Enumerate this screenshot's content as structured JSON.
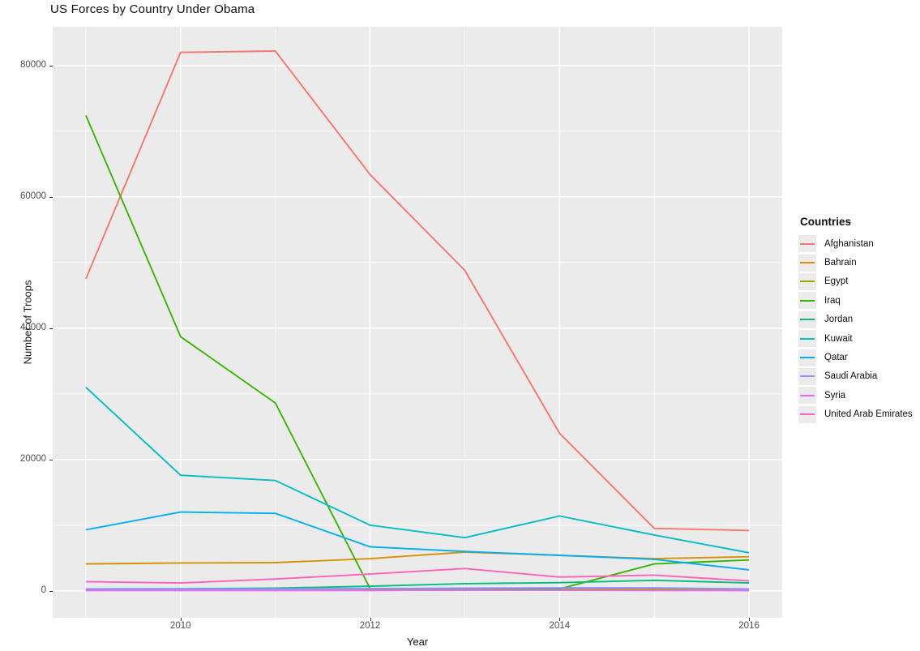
{
  "chart_data": {
    "type": "line",
    "title": "US Forces by Country Under Obama",
    "xlabel": "Year",
    "ylabel": "Number of Troops",
    "legend_title": "Countries",
    "legend_position": "right",
    "grid": true,
    "panel_bg": "#EBEBEB",
    "grid_color": "#FFFFFF",
    "x": [
      2009,
      2010,
      2011,
      2012,
      2013,
      2014,
      2015,
      2016
    ],
    "xlim": [
      2008.65,
      2016.35
    ],
    "ylim": [
      -4100,
      85900
    ],
    "x_major_ticks": [
      2010,
      2012,
      2014,
      2016
    ],
    "x_minor_ticks": [
      2009,
      2011,
      2013,
      2015
    ],
    "y_major_ticks": [
      0,
      20000,
      40000,
      60000,
      80000
    ],
    "y_minor_ticks": [
      10000,
      30000,
      50000,
      70000
    ],
    "series": [
      {
        "name": "Afghanistan",
        "color": "#F8766D",
        "values": [
          47500,
          82000,
          82200,
          63400,
          48800,
          24000,
          9500,
          9200
        ]
      },
      {
        "name": "Bahrain",
        "color": "#D89000",
        "values": [
          4100,
          4250,
          4300,
          4900,
          5900,
          5400,
          4900,
          5200
        ]
      },
      {
        "name": "Egypt",
        "color": "#A3A500",
        "values": [
          300,
          300,
          300,
          280,
          260,
          250,
          260,
          290
        ]
      },
      {
        "name": "Iraq",
        "color": "#39B600",
        "values": [
          72400,
          38700,
          28600,
          350,
          300,
          300,
          4100,
          4700
        ]
      },
      {
        "name": "Jordan",
        "color": "#00BF7D",
        "values": [
          300,
          320,
          400,
          700,
          1100,
          1250,
          1600,
          1200
        ]
      },
      {
        "name": "Kuwait",
        "color": "#00BFC4",
        "values": [
          31000,
          17600,
          16800,
          10000,
          8100,
          11400,
          8500,
          5800
        ]
      },
      {
        "name": "Qatar",
        "color": "#00B0F6",
        "values": [
          9300,
          12000,
          11800,
          6700,
          6000,
          5400,
          4800,
          3200
        ]
      },
      {
        "name": "Saudi Arabia",
        "color": "#9590FF",
        "values": [
          300,
          300,
          300,
          350,
          400,
          450,
          450,
          300
        ]
      },
      {
        "name": "Syria",
        "color": "#E76BF3",
        "values": [
          50,
          50,
          50,
          50,
          100,
          100,
          50,
          30
        ]
      },
      {
        "name": "United Arab Emirates",
        "color": "#FF62BC",
        "values": [
          1400,
          1200,
          1800,
          2550,
          3400,
          2100,
          2400,
          1500
        ]
      }
    ]
  }
}
